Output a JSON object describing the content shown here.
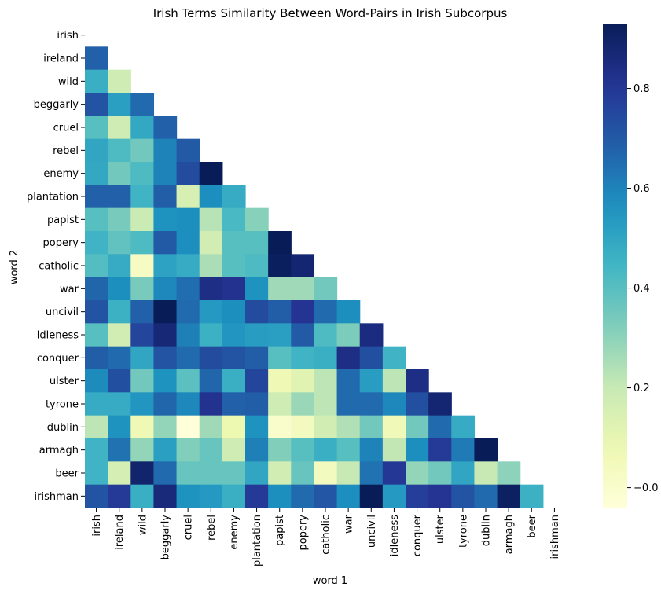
{
  "chart_data": {
    "type": "heatmap",
    "title": "Irish Terms Similarity Between Word-Pairs in Irish Subcorpus",
    "xlabel": "word 1",
    "ylabel": "word 2",
    "colormap": "YlGnBu",
    "vmin": -0.04,
    "vmax": 0.93,
    "colorbar_ticks": [
      -0.0,
      0.2,
      0.4,
      0.6,
      0.8
    ],
    "colorbar_tick_labels": [
      "−0.0",
      "0.2",
      "0.4",
      "0.6",
      "0.8"
    ],
    "mask": "upper triangle including diagonal",
    "labels": [
      "irish",
      "ireland",
      "wild",
      "beggarly",
      "cruel",
      "rebel",
      "enemy",
      "plantation",
      "papist",
      "popery",
      "catholic",
      "war",
      "uncivil",
      "idleness",
      "conquer",
      "ulster",
      "tyrone",
      "dublin",
      "armagh",
      "beer",
      "irishman"
    ],
    "rows": [
      [],
      [
        0.68
      ],
      [
        0.47,
        0.18
      ],
      [
        0.72,
        0.52,
        0.66
      ],
      [
        0.4,
        0.18,
        0.49,
        0.68
      ],
      [
        0.5,
        0.42,
        0.35,
        0.6,
        0.7
      ],
      [
        0.49,
        0.35,
        0.42,
        0.6,
        0.74,
        0.93
      ],
      [
        0.68,
        0.68,
        0.45,
        0.69,
        0.15,
        0.57,
        0.48
      ],
      [
        0.4,
        0.34,
        0.19,
        0.56,
        0.57,
        0.23,
        0.43,
        0.31
      ],
      [
        0.45,
        0.38,
        0.42,
        0.7,
        0.57,
        0.17,
        0.4,
        0.4,
        0.93
      ],
      [
        0.41,
        0.48,
        0.03,
        0.51,
        0.48,
        0.25,
        0.4,
        0.42,
        0.92,
        0.88
      ],
      [
        0.67,
        0.57,
        0.34,
        0.59,
        0.65,
        0.84,
        0.82,
        0.56,
        0.27,
        0.27,
        0.35
      ],
      [
        0.72,
        0.46,
        0.68,
        0.93,
        0.66,
        0.54,
        0.57,
        0.74,
        0.69,
        0.81,
        0.66,
        0.57
      ],
      [
        0.4,
        0.17,
        0.76,
        0.87,
        0.61,
        0.46,
        0.55,
        0.53,
        0.52,
        0.7,
        0.42,
        0.33,
        0.85
      ],
      [
        0.69,
        0.66,
        0.5,
        0.72,
        0.66,
        0.74,
        0.72,
        0.69,
        0.4,
        0.45,
        0.47,
        0.84,
        0.73,
        0.45
      ],
      [
        0.58,
        0.73,
        0.35,
        0.56,
        0.39,
        0.67,
        0.47,
        0.76,
        0.07,
        0.12,
        0.22,
        0.66,
        0.53,
        0.22,
        0.84
      ],
      [
        0.48,
        0.48,
        0.55,
        0.67,
        0.59,
        0.82,
        0.68,
        0.69,
        0.18,
        0.28,
        0.22,
        0.66,
        0.66,
        0.59,
        0.73,
        0.88
      ],
      [
        0.22,
        0.56,
        0.07,
        0.29,
        -0.04,
        0.27,
        0.08,
        0.56,
        0.0,
        0.04,
        0.17,
        0.24,
        0.35,
        0.06,
        0.35,
        0.66,
        0.48
      ],
      [
        0.45,
        0.64,
        0.29,
        0.52,
        0.32,
        0.37,
        0.18,
        0.61,
        0.32,
        0.4,
        0.47,
        0.4,
        0.6,
        0.21,
        0.57,
        0.79,
        0.62,
        0.93
      ],
      [
        0.45,
        0.16,
        0.89,
        0.66,
        0.37,
        0.37,
        0.37,
        0.5,
        0.17,
        0.37,
        0.04,
        0.2,
        0.64,
        0.8,
        0.29,
        0.35,
        0.5,
        0.2,
        0.3
      ],
      [
        0.72,
        0.79,
        0.47,
        0.86,
        0.56,
        0.54,
        0.47,
        0.79,
        0.57,
        0.66,
        0.71,
        0.57,
        0.93,
        0.54,
        0.78,
        0.81,
        0.72,
        0.66,
        0.91,
        0.46
      ]
    ]
  }
}
